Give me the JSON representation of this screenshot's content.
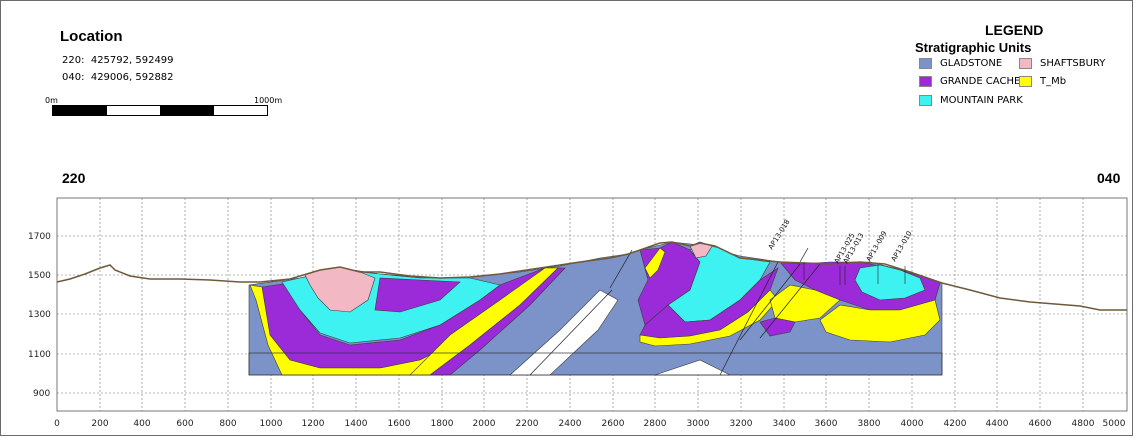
{
  "location": {
    "title": "Location",
    "rows": [
      {
        "id": "220:",
        "coords": "425792, 592499"
      },
      {
        "id": "040:",
        "coords": "429006, 592882"
      }
    ]
  },
  "scale": {
    "start": "0m",
    "end": "1000m"
  },
  "legend": {
    "title": "LEGEND",
    "subtitle": "Stratigraphic Units",
    "units": [
      {
        "name": "GLADSTONE",
        "color": "#7b93c8"
      },
      {
        "name": "SHAFTSBURY",
        "color": "#f2b8c4"
      },
      {
        "name": "GRANDE CACHE",
        "color": "#9b2bd9"
      },
      {
        "name": "T_Mb",
        "color": "#ffff00"
      },
      {
        "name": "MOUNTAIN PARK",
        "color": "#3ff2f2"
      }
    ]
  },
  "section": {
    "left_label": "220",
    "right_label": "040",
    "x_ticks": [
      "0",
      "200",
      "400",
      "600",
      "800",
      "1000",
      "1200",
      "1400",
      "1600",
      "1800",
      "2000",
      "2200",
      "2400",
      "2600",
      "2800",
      "3000",
      "3200",
      "3400",
      "3600",
      "3800",
      "4000",
      "4200",
      "4400",
      "4600",
      "4800",
      "5000"
    ],
    "y_ticks": [
      "1700",
      "1500",
      "1300",
      "1100",
      "900"
    ],
    "wells": [
      "AP13-018",
      "AP13-025",
      "AP13-013",
      "AP13-009",
      "AP13-010"
    ]
  }
}
